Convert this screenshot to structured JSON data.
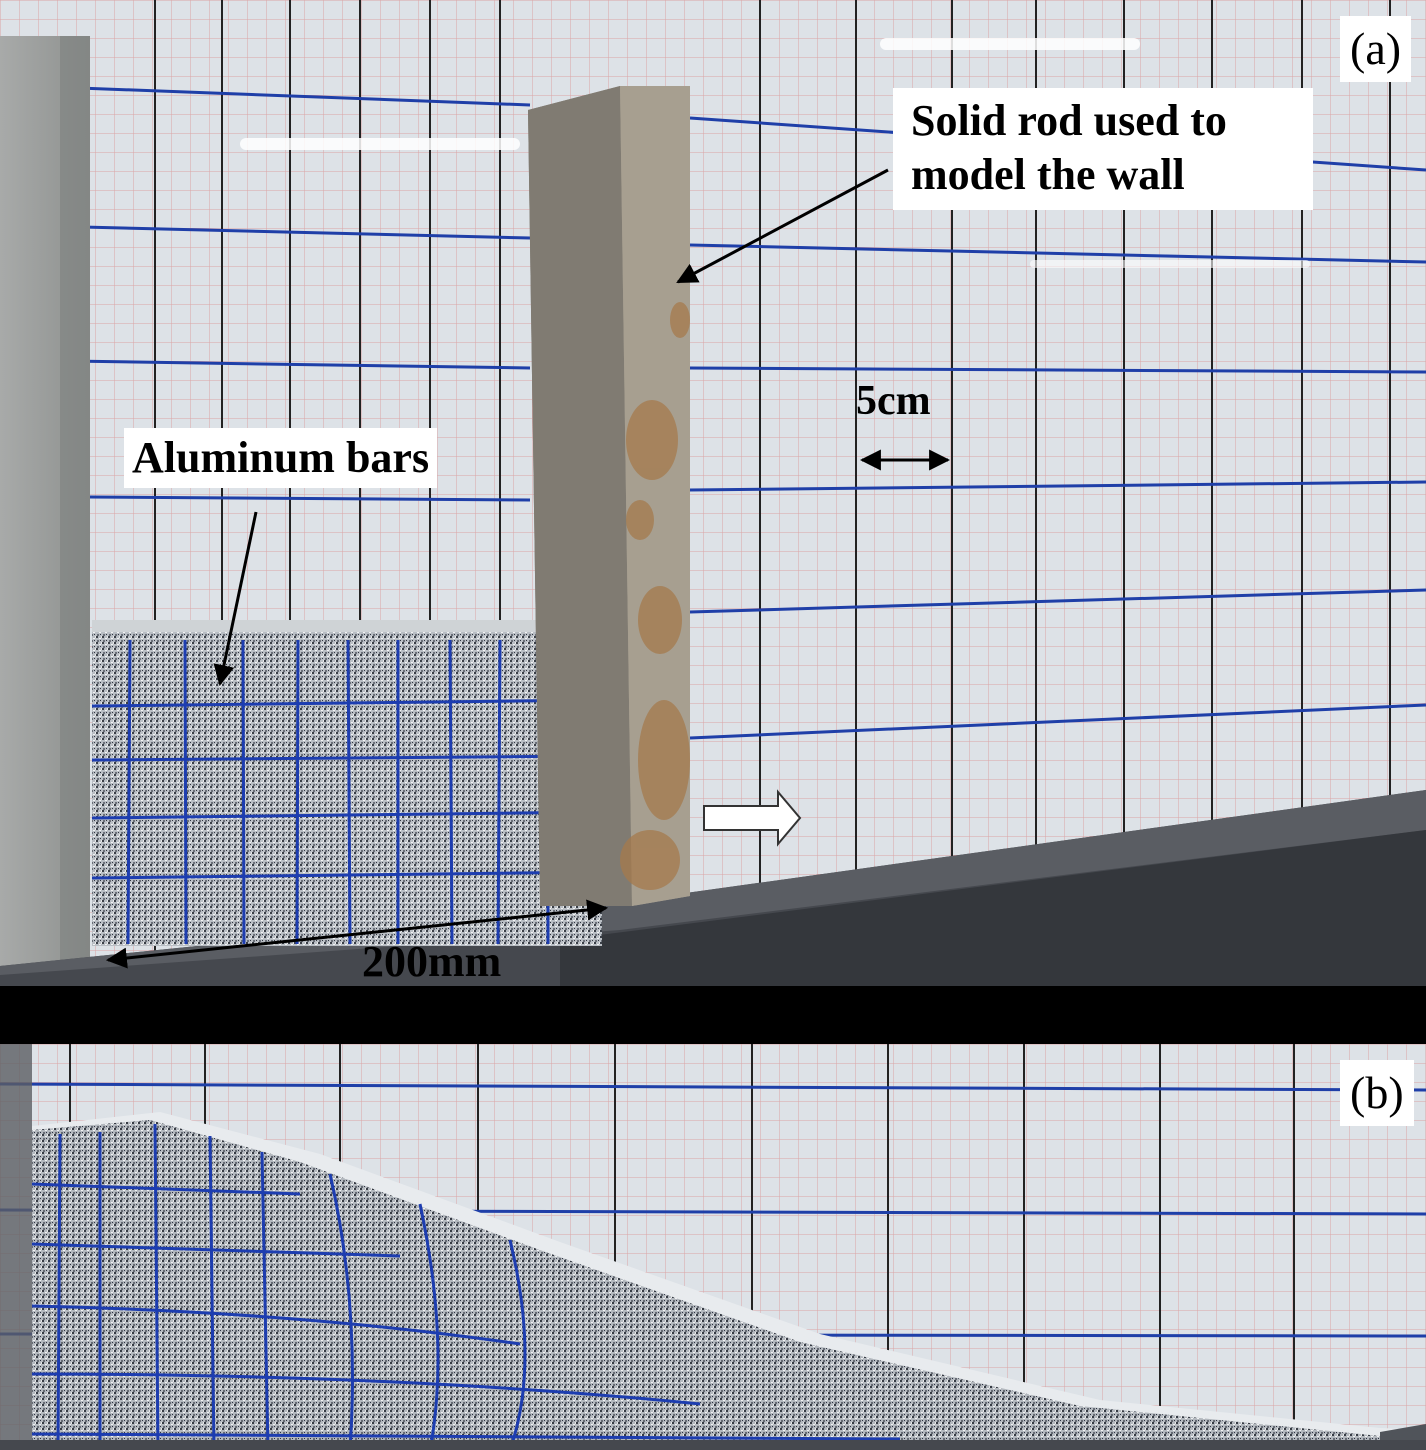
{
  "panel_a": {
    "letter": "(a)",
    "rod_label_line1": "Solid rod used to",
    "rod_label_line2": "model the wall",
    "bars_label": "Aluminum bars",
    "scale_label": "5cm",
    "width_label": "200mm"
  },
  "panel_b": {
    "letter": "(b)"
  },
  "colors": {
    "grid_blue": "#1f3fa8",
    "grid_black": "#222222",
    "grid_red": "#d98a8a",
    "background": "#dde2e7",
    "rod": "#9a9286",
    "rust": "#a57a4c",
    "base": "#45484e"
  }
}
